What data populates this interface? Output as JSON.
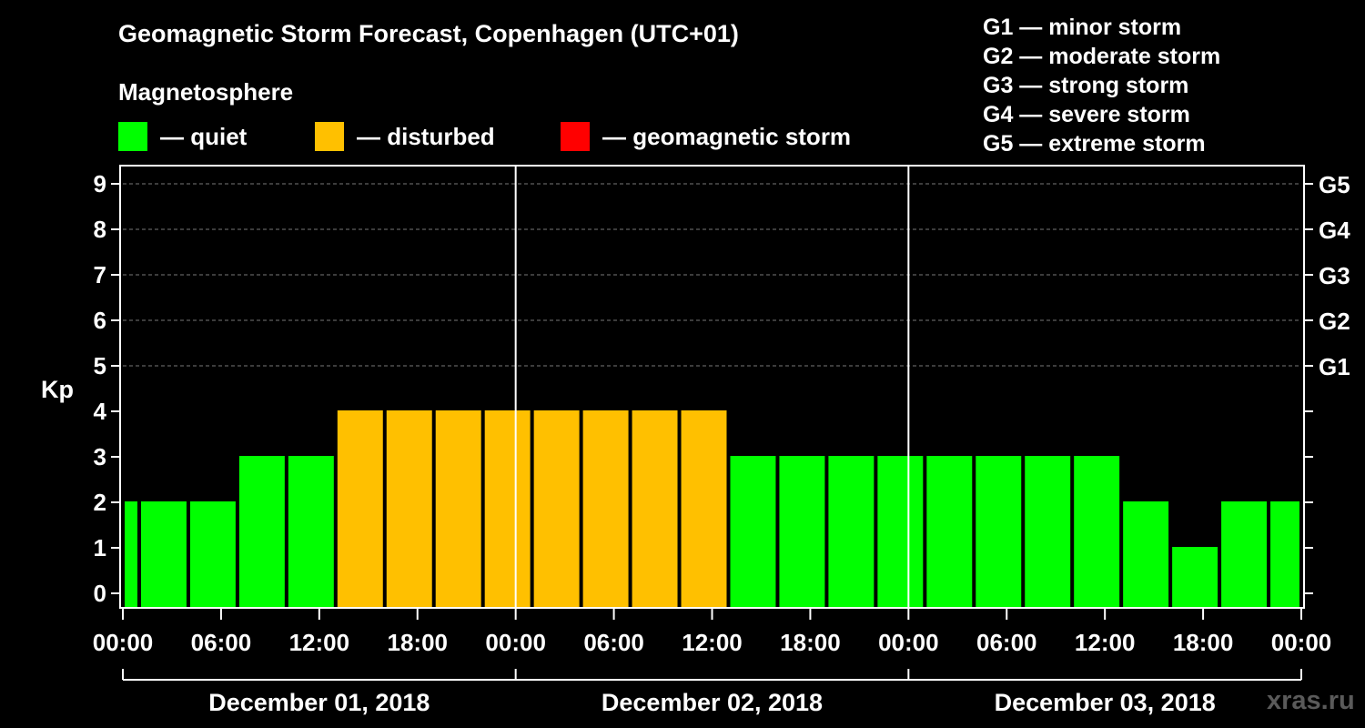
{
  "title": "Geomagnetic Storm Forecast, Copenhagen (UTC+01)",
  "subtitle": "Magnetosphere",
  "legend": [
    {
      "label": "— quiet",
      "color": "#00ff00"
    },
    {
      "label": "— disturbed",
      "color": "#ffc000"
    },
    {
      "label": "— geomagnetic storm",
      "color": "#ff0000"
    }
  ],
  "storm_scale": [
    "G1 — minor storm",
    "G2 — moderate storm",
    "G3 — strong storm",
    "G4 — severe storm",
    "G5 — extreme storm"
  ],
  "watermark": "xras.ru",
  "colors": {
    "quiet": "#00ff00",
    "disturbed": "#ffc000",
    "storm": "#ff0000",
    "background": "#000000"
  },
  "chart_data": {
    "type": "bar",
    "title": "Geomagnetic Storm Forecast, Copenhagen (UTC+01)",
    "ylabel": "Kp",
    "ylim": [
      0,
      9
    ],
    "yticks": [
      0,
      1,
      2,
      3,
      4,
      5,
      6,
      7,
      8,
      9
    ],
    "right_axis_labels": [
      {
        "kp": 5,
        "label": "G1"
      },
      {
        "kp": 6,
        "label": "G2"
      },
      {
        "kp": 7,
        "label": "G3"
      },
      {
        "kp": 8,
        "label": "G4"
      },
      {
        "kp": 9,
        "label": "G5"
      }
    ],
    "x_range_hours": [
      0,
      72
    ],
    "xtick_hours": [
      0,
      6,
      12,
      18,
      24,
      30,
      36,
      42,
      48,
      54,
      60,
      66,
      72
    ],
    "xtick_labels": [
      "00:00",
      "06:00",
      "12:00",
      "18:00",
      "00:00",
      "06:00",
      "12:00",
      "18:00",
      "00:00",
      "06:00",
      "12:00",
      "18:00",
      "00:00"
    ],
    "day_labels": [
      "December 01, 2018",
      "December 02, 2018",
      "December 03, 2018"
    ],
    "grid": "horizontal dashed at Kp 5–9",
    "bars": [
      {
        "start": -2,
        "end": 1,
        "kp": 2,
        "status": "quiet"
      },
      {
        "start": 1,
        "end": 4,
        "kp": 2,
        "status": "quiet"
      },
      {
        "start": 4,
        "end": 7,
        "kp": 2,
        "status": "quiet"
      },
      {
        "start": 7,
        "end": 10,
        "kp": 3,
        "status": "quiet"
      },
      {
        "start": 10,
        "end": 13,
        "kp": 3,
        "status": "quiet"
      },
      {
        "start": 13,
        "end": 16,
        "kp": 4,
        "status": "disturbed"
      },
      {
        "start": 16,
        "end": 19,
        "kp": 4,
        "status": "disturbed"
      },
      {
        "start": 19,
        "end": 22,
        "kp": 4,
        "status": "disturbed"
      },
      {
        "start": 22,
        "end": 25,
        "kp": 4,
        "status": "disturbed"
      },
      {
        "start": 25,
        "end": 28,
        "kp": 4,
        "status": "disturbed"
      },
      {
        "start": 28,
        "end": 31,
        "kp": 4,
        "status": "disturbed"
      },
      {
        "start": 31,
        "end": 34,
        "kp": 4,
        "status": "disturbed"
      },
      {
        "start": 34,
        "end": 37,
        "kp": 4,
        "status": "disturbed"
      },
      {
        "start": 37,
        "end": 40,
        "kp": 3,
        "status": "quiet"
      },
      {
        "start": 40,
        "end": 43,
        "kp": 3,
        "status": "quiet"
      },
      {
        "start": 43,
        "end": 46,
        "kp": 3,
        "status": "quiet"
      },
      {
        "start": 46,
        "end": 49,
        "kp": 3,
        "status": "quiet"
      },
      {
        "start": 49,
        "end": 52,
        "kp": 3,
        "status": "quiet"
      },
      {
        "start": 52,
        "end": 55,
        "kp": 3,
        "status": "quiet"
      },
      {
        "start": 55,
        "end": 58,
        "kp": 3,
        "status": "quiet"
      },
      {
        "start": 58,
        "end": 61,
        "kp": 3,
        "status": "quiet"
      },
      {
        "start": 61,
        "end": 64,
        "kp": 2,
        "status": "quiet"
      },
      {
        "start": 64,
        "end": 67,
        "kp": 1,
        "status": "quiet"
      },
      {
        "start": 67,
        "end": 70,
        "kp": 2,
        "status": "quiet"
      },
      {
        "start": 70,
        "end": 73,
        "kp": 2,
        "status": "quiet"
      }
    ]
  }
}
